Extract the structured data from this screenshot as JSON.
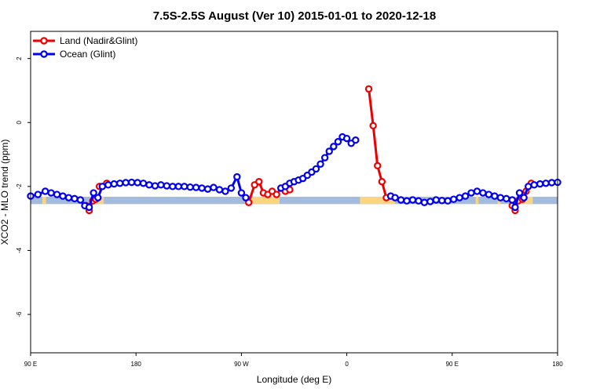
{
  "chart_data": {
    "type": "line",
    "title": "7.5S-2.5S August (Ver 10)   2015-01-01 to 2020-12-18",
    "xlabel": "Longitude (deg E)",
    "ylabel": "XCO2 - MLO trend (ppm)",
    "xlim": [
      90,
      450
    ],
    "ylim": [
      -7.2,
      2.85
    ],
    "x_ticks": [
      {
        "value": 90,
        "label": "90 E"
      },
      {
        "value": 162,
        "label": "180"
      },
      {
        "value": 234,
        "label": "90 W"
      },
      {
        "value": 306,
        "label": "0"
      },
      {
        "value": 378,
        "label": "90 E"
      },
      {
        "value": 450,
        "label": "180"
      }
    ],
    "y_ticks": [
      {
        "value": 2,
        "label": "2"
      },
      {
        "value": 0,
        "label": "0"
      },
      {
        "value": -2,
        "label": "-2"
      },
      {
        "value": -4,
        "label": "-4"
      },
      {
        "value": -6,
        "label": "-6"
      }
    ],
    "legend": {
      "position": "top-left",
      "entries": [
        {
          "label": "Land (Nadir&Glint)",
          "color": "#ee0000"
        },
        {
          "label": "Ocean (Glint)",
          "color": "#0000ee"
        }
      ]
    },
    "surface_band": {
      "y_range": [
        -2.55,
        -2.32
      ],
      "ocean_color": "#a3bcdd",
      "land_color": "#fad47e",
      "land_x_ranges": [
        [
          98,
          100.5
        ],
        [
          133,
          140
        ],
        [
          239,
          260
        ],
        [
          315,
          339
        ],
        [
          394,
          396
        ],
        [
          409,
          411
        ],
        [
          421,
          433
        ]
      ]
    },
    "series": [
      {
        "name": "Land (Nadir&Glint)",
        "color": "#ee0000",
        "segments": [
          {
            "x": [
              128,
              130,
              132.5,
              134.5
            ],
            "y": [
              -2.6,
              -2.75,
              -2.45,
              -2.4
            ]
          },
          {
            "x": [
              137,
              142
            ],
            "y": [
              -2.0,
              -1.9
            ]
          },
          {
            "x": [
              239,
              243,
              246,
              249,
              252,
              255,
              258,
              261,
              264,
              267
            ],
            "y": [
              -2.5,
              -1.95,
              -1.85,
              -2.2,
              -2.25,
              -2.15,
              -2.25,
              -2.05,
              -2.15,
              -2.1
            ]
          },
          {
            "x": [
              321,
              324,
              327,
              330,
              333
            ],
            "y": [
              1.05,
              -0.1,
              -1.35,
              -1.85,
              -2.35
            ]
          },
          {
            "x": [
              419,
              421,
              423,
              426,
              428.5,
              432
            ],
            "y": [
              -2.6,
              -2.75,
              -2.45,
              -2.4,
              -2.15,
              -1.9
            ]
          }
        ]
      },
      {
        "name": "Ocean (Glint)",
        "color": "#0000ee",
        "segments": [
          {
            "x": [
              90,
              95,
              100,
              104,
              108,
              112,
              116,
              120,
              124,
              127,
              130,
              133,
              136,
              139,
              143,
              147,
              151,
              155,
              159,
              163,
              167,
              171,
              175,
              179,
              183,
              187,
              191,
              195,
              199,
              203,
              207,
              211,
              215,
              219,
              223,
              227,
              231,
              234,
              237
            ],
            "y": [
              -2.3,
              -2.25,
              -2.15,
              -2.2,
              -2.25,
              -2.3,
              -2.35,
              -2.38,
              -2.42,
              -2.6,
              -2.65,
              -2.2,
              -2.35,
              -2.0,
              -1.95,
              -1.92,
              -1.9,
              -1.88,
              -1.87,
              -1.88,
              -1.9,
              -1.95,
              -1.98,
              -1.95,
              -1.98,
              -2.0,
              -2.0,
              -2.0,
              -2.02,
              -2.03,
              -2.05,
              -2.08,
              -2.03,
              -2.1,
              -2.15,
              -2.05,
              -1.7,
              -2.2,
              -2.35
            ]
          },
          {
            "x": [
              261,
              264,
              267,
              270,
              273,
              276,
              279,
              282,
              285,
              288,
              291,
              294,
              297,
              300,
              303,
              306,
              309,
              312
            ],
            "y": [
              -2.05,
              -2.0,
              -1.9,
              -1.85,
              -1.8,
              -1.75,
              -1.65,
              -1.55,
              -1.45,
              -1.3,
              -1.1,
              -0.9,
              -0.75,
              -0.6,
              -0.45,
              -0.5,
              -0.65,
              -0.55
            ]
          },
          {
            "x": [
              336,
              339,
              343,
              347,
              351,
              355,
              359,
              363,
              367,
              371,
              375,
              379,
              383,
              387,
              391,
              395,
              399,
              403,
              407,
              411,
              415,
              419,
              421,
              424,
              427,
              430,
              434,
              438,
              442,
              446,
              450
            ],
            "y": [
              -2.3,
              -2.35,
              -2.42,
              -2.45,
              -2.42,
              -2.45,
              -2.5,
              -2.47,
              -2.42,
              -2.44,
              -2.45,
              -2.4,
              -2.35,
              -2.3,
              -2.2,
              -2.15,
              -2.2,
              -2.25,
              -2.3,
              -2.35,
              -2.38,
              -2.42,
              -2.65,
              -2.2,
              -2.35,
              -2.0,
              -1.95,
              -1.92,
              -1.9,
              -1.88,
              -1.87
            ]
          }
        ]
      }
    ]
  }
}
